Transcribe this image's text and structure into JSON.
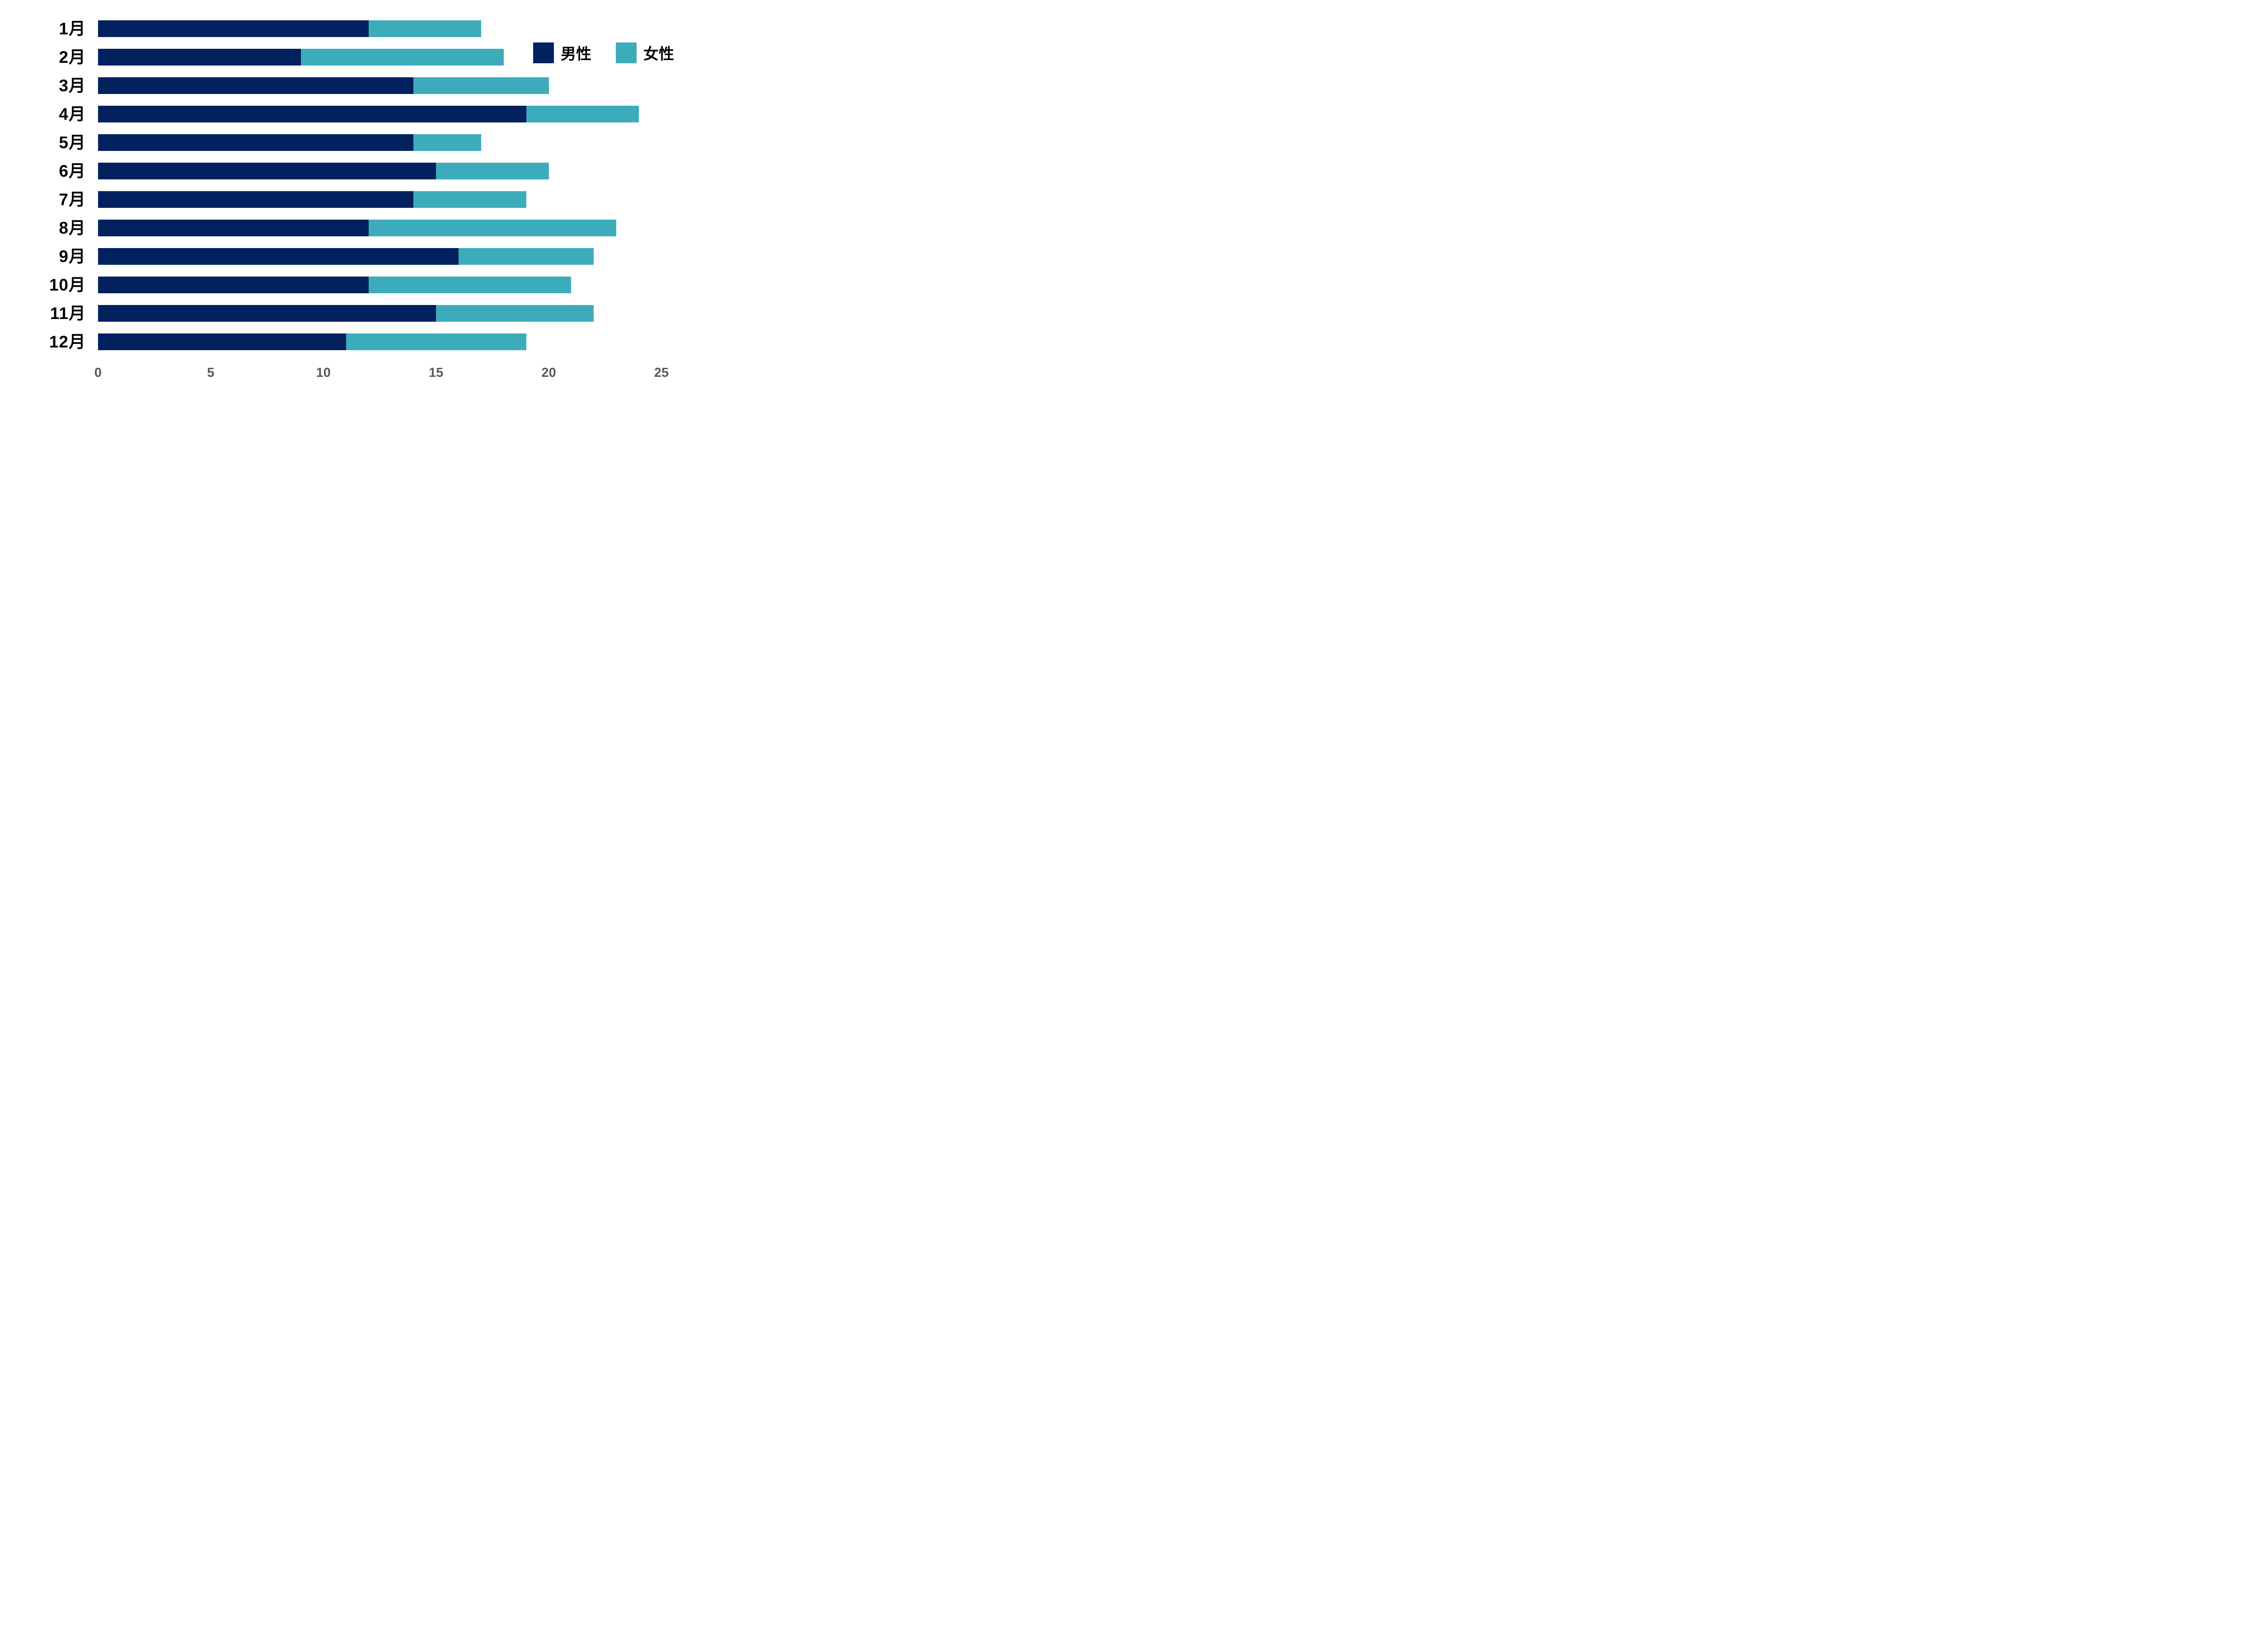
{
  "page": {
    "background": "#ffffff"
  },
  "chart_data": {
    "type": "bar",
    "orientation": "horizontal",
    "stacked": true,
    "title": "",
    "categories": [
      "1月",
      "2月",
      "3月",
      "4月",
      "5月",
      "6月",
      "7月",
      "8月",
      "9月",
      "10月",
      "11月",
      "12月"
    ],
    "series": [
      {
        "name": "男性",
        "color": "#02215E",
        "values": [
          12,
          9,
          14,
          19,
          14,
          15,
          14,
          12,
          16,
          12,
          15,
          11
        ]
      },
      {
        "name": "女性",
        "color": "#3DACBA",
        "values": [
          5,
          9,
          6,
          5,
          3,
          5,
          5,
          11,
          6,
          9,
          7,
          8
        ]
      }
    ],
    "totals": [
      17,
      18,
      20,
      24,
      17,
      20,
      19,
      23,
      22,
      21,
      22,
      19
    ],
    "xlim": [
      0,
      25
    ],
    "xticks": [
      "0",
      "5",
      "10",
      "15",
      "20",
      "25"
    ],
    "grid": false,
    "legend_position": "top-right",
    "tick_label_color": "#595959",
    "category_label_color": "#000000",
    "background": "#ffffff"
  },
  "legend": {
    "male_label": "男性",
    "female_label": "女性"
  }
}
